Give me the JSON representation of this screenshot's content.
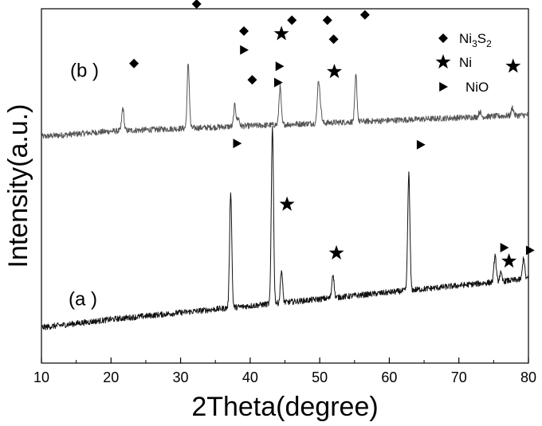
{
  "chart_data": {
    "type": "line",
    "xlabel": "2Theta(degree)",
    "ylabel": "Intensity(a.u.)",
    "xlim": [
      10,
      80
    ],
    "xticks": [
      10,
      20,
      30,
      40,
      50,
      60,
      70,
      80
    ],
    "xtick_labels": [
      "10",
      "20",
      "30",
      "40",
      "50",
      "60",
      "70",
      "80"
    ],
    "y_tick_values_shown": false,
    "grid": false,
    "legend": {
      "position": "top-right",
      "entries": [
        {
          "symbol": "diamond",
          "label_main": "Ni",
          "sub1": "3",
          "mid": "S",
          "sub2": "2"
        },
        {
          "symbol": "star",
          "label_main": "Ni"
        },
        {
          "symbol": "triangle",
          "label_main": "NiO"
        }
      ]
    },
    "series": [
      {
        "name": "(b  )",
        "color": "#555555",
        "baseline": [
          [
            10,
            0.76
          ],
          [
            20,
            0.78
          ],
          [
            30,
            0.79
          ],
          [
            40,
            0.8
          ],
          [
            50,
            0.81
          ],
          [
            60,
            0.82
          ],
          [
            70,
            0.83
          ],
          [
            80,
            0.84
          ]
        ],
        "peaks": [
          [
            21.7,
            0.085
          ],
          [
            31.1,
            0.24
          ],
          [
            37.8,
            0.08
          ],
          [
            38.3,
            0.03
          ],
          [
            44.3,
            0.14
          ],
          [
            49.8,
            0.15
          ],
          [
            50.1,
            0.06
          ],
          [
            55.2,
            0.17
          ],
          [
            73.0,
            0.02
          ],
          [
            77.7,
            0.03
          ]
        ],
        "markers": [
          {
            "type": "diamond",
            "x": 23.3,
            "y": 1.03
          },
          {
            "type": "diamond",
            "x": 32.3,
            "y": 1.25
          },
          {
            "type": "diamond",
            "x": 39.1,
            "y": 1.15
          },
          {
            "type": "diamond",
            "x": 40.3,
            "y": 0.97
          },
          {
            "type": "diamond",
            "x": 46.0,
            "y": 1.19
          },
          {
            "type": "diamond",
            "x": 51.1,
            "y": 1.19
          },
          {
            "type": "diamond",
            "x": 52.0,
            "y": 1.12
          },
          {
            "type": "diamond",
            "x": 56.5,
            "y": 1.21
          },
          {
            "type": "star",
            "x": 44.5,
            "y": 1.14
          },
          {
            "type": "star",
            "x": 52.1,
            "y": 1.0
          },
          {
            "type": "star",
            "x": 77.8,
            "y": 1.02
          },
          {
            "type": "triangle",
            "x": 39.1,
            "y": 1.08
          },
          {
            "type": "triangle",
            "x": 44.0,
            "y": 0.96
          }
        ]
      },
      {
        "name": "(a  )",
        "color": "#111111",
        "baseline": [
          [
            10,
            0.055
          ],
          [
            20,
            0.085
          ],
          [
            30,
            0.11
          ],
          [
            40,
            0.135
          ],
          [
            50,
            0.16
          ],
          [
            60,
            0.185
          ],
          [
            70,
            0.21
          ],
          [
            80,
            0.235
          ]
        ],
        "peaks": [
          [
            37.2,
            0.43
          ],
          [
            43.2,
            0.66
          ],
          [
            44.5,
            0.12
          ],
          [
            51.9,
            0.09
          ],
          [
            62.8,
            0.43
          ],
          [
            75.2,
            0.1
          ],
          [
            76.0,
            0.03
          ],
          [
            79.3,
            0.08
          ]
        ],
        "markers": [
          {
            "type": "triangle",
            "x": 38.1,
            "y": 0.735
          },
          {
            "type": "triangle",
            "x": 44.2,
            "y": 1.02
          },
          {
            "type": "triangle",
            "x": 64.5,
            "y": 0.73
          },
          {
            "type": "triangle",
            "x": 76.5,
            "y": 0.35
          },
          {
            "type": "triangle",
            "x": 80.2,
            "y": 0.34
          },
          {
            "type": "star",
            "x": 45.3,
            "y": 0.51
          },
          {
            "type": "star",
            "x": 52.4,
            "y": 0.33
          },
          {
            "type": "star",
            "x": 77.2,
            "y": 0.3
          }
        ]
      }
    ]
  }
}
